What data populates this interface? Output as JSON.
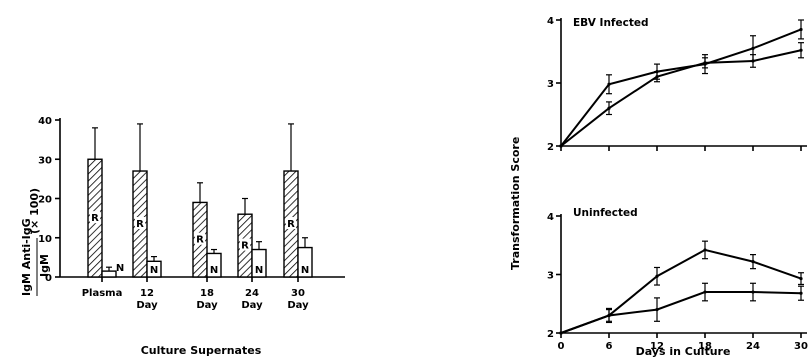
{
  "chart_data": [
    {
      "type": "bar",
      "xlabel": "Culture Supernates",
      "ylabel_main": "IgM Anti-IgG",
      "ylabel_denominator": "IgM",
      "ylabel_scale": "(× 100)",
      "ylim": [
        0,
        40
      ],
      "yticks": [
        "0",
        "10",
        "20",
        "30",
        "40"
      ],
      "categories": [
        "Plasma",
        "12\nDay",
        "18\nDay",
        "24\nDay",
        "30\nDay"
      ],
      "series": [
        {
          "name": "R",
          "values": [
            30,
            27,
            19,
            16,
            27
          ],
          "errors": [
            8,
            12,
            5,
            4,
            12
          ]
        },
        {
          "name": "N",
          "values": [
            1.5,
            4,
            6,
            7,
            7.5
          ],
          "errors": [
            1,
            1.2,
            1,
            2,
            2.5
          ]
        }
      ]
    },
    {
      "type": "line",
      "panel_title": "EBV Infected",
      "x": [
        0,
        6,
        12,
        18,
        24,
        30
      ],
      "ylim": [
        2,
        4
      ],
      "yticks": [
        "2",
        "3",
        "4"
      ],
      "series": [
        {
          "values": [
            2.0,
            2.98,
            3.18,
            3.3,
            3.55,
            3.85
          ],
          "errors": [
            0,
            0.15,
            0.12,
            0.15,
            0.2,
            0.15
          ]
        },
        {
          "values": [
            2.0,
            2.6,
            3.1,
            3.32,
            3.35,
            3.52
          ],
          "errors": [
            0,
            0.1,
            0.08,
            0.08,
            0.1,
            0.12
          ]
        }
      ]
    },
    {
      "type": "line",
      "panel_title": "Uninfected",
      "x": [
        0,
        6,
        12,
        18,
        24,
        30
      ],
      "xticks": [
        "0",
        "6",
        "12",
        "18",
        "24",
        "30"
      ],
      "xlabel": "Days in Culture",
      "ylim": [
        2,
        4
      ],
      "yticks": [
        "2",
        "3",
        "4"
      ],
      "series": [
        {
          "values": [
            2.0,
            2.3,
            2.97,
            3.42,
            3.22,
            2.93
          ],
          "errors": [
            0,
            0.12,
            0.15,
            0.15,
            0.12,
            0.1
          ]
        },
        {
          "values": [
            2.0,
            2.3,
            2.4,
            2.7,
            2.7,
            2.68
          ],
          "errors": [
            0,
            0.1,
            0.2,
            0.15,
            0.15,
            0.12
          ]
        }
      ]
    }
  ],
  "shared_ylabel": "Transformation Score"
}
